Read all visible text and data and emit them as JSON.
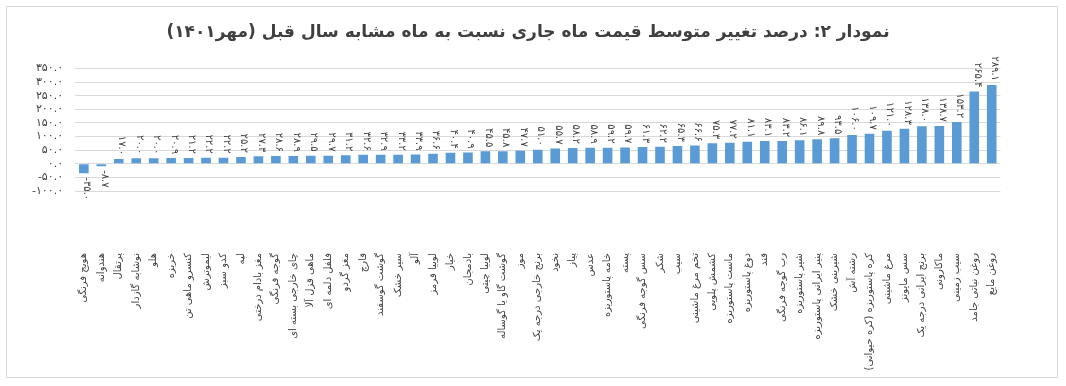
{
  "chart_data": {
    "type": "bar",
    "title": "نمودار ۲: درصد تغییر متوسط قیمت ماه جاری نسبت به ماه مشابه سال قبل (مهر۱۴۰۱)",
    "categories": [
      "هویج فرنگی",
      "هندوانه",
      "پرتقال",
      "نوشابه گازدار",
      "هلو",
      "خربزه",
      "کنسرو ماهی تن",
      "لیموترش",
      "کدو سبز",
      "لپه",
      "مغز بادام درختی",
      "گوجه فرنگی",
      "چای خارجی بسته ای",
      "ماهی قزل آلا",
      "فلفل دلمه ای",
      "مغز گردو",
      "قارچ",
      "گوشت گوسفند",
      "سیر خشک",
      "آلو",
      "لوبیا قرمز",
      "خیار",
      "بادمجان",
      "لوبیا چیتی",
      "گوشت گاو یا گوساله",
      "موز",
      "برنج خارجی درجه یک",
      "نخود",
      "پیاز",
      "عدس",
      "خامه پاستوریزه",
      "پسته",
      "سس گوجه فرنگی",
      "شکر",
      "سیب",
      "تخم مرغ ماشینی",
      "کشمش پلویی",
      "ماست پاستوریزه",
      "دوغ پاستوریزه",
      "قند",
      "رب گوجه فرنگی",
      "شیر پاستوریزه",
      "پنیر ایرانی پاستوریزه",
      "شیرینی خشک",
      "رشته آش",
      "کره پاستوریزه (کره حیوانی)",
      "مرغ ماشینی",
      "سس مایونز",
      "برنج ایرانی درجه یک",
      "ماکارونی",
      "سیب زمینی",
      "روغن نباتی جامد",
      "روغن مایع"
    ],
    "values": [
      -35.0,
      -8.7,
      17.0,
      20.0,
      20.0,
      20.9,
      21.2,
      22.2,
      22.2,
      25.2,
      27.3,
      28.6,
      28.9,
      29.5,
      29.7,
      31.2,
      32.6,
      32.9,
      33.2,
      33.9,
      36.6,
      40.4,
      40.9,
      45.5,
      45.8,
      47.7,
      51.0,
      55.7,
      58.2,
      58.9,
      59.2,
      59.7,
      61.3,
      62.2,
      65.3,
      66.6,
      75.3,
      77.2,
      81.1,
      83.1,
      83.2,
      86.1,
      89.8,
      93.5,
      106.0,
      109.7,
      121.0,
      128.3,
      138.0,
      138.7,
      153.2,
      265.4,
      289.1
    ],
    "value_labels": [
      "-۳۵.۰",
      "-۸.۷",
      "۱۷.۰",
      "۲۰.۰",
      "۲۰.۰",
      "۲۰.۹",
      "۲۱.۲",
      "۲۲.۲",
      "۲۲.۲",
      "۲۵.۲",
      "۲۷.۳",
      "۲۸.۶",
      "۲۸.۹",
      "۲۹.۵",
      "۲۹.۷",
      "۳۱.۲",
      "۳۲.۶",
      "۳۲.۹",
      "۳۳.۲",
      "۳۳.۹",
      "۳۶.۶",
      "۴۰.۴",
      "۴۰.۹",
      "۴۵.۵",
      "۴۵.۸",
      "۴۷.۷",
      "۵۱.۰",
      "۵۵.۷",
      "۵۸.۲",
      "۵۸.۹",
      "۵۹.۲",
      "۵۹.۷",
      "۶۱.۳",
      "۶۲.۲",
      "۶۵.۳",
      "۶۶.۶",
      "۷۵.۳",
      "۷۷.۲",
      "۸۱.۱",
      "۸۳.۱",
      "۸۳.۲",
      "۸۶.۱",
      "۸۹.۸",
      "۹۳.۵",
      "۱۰۶.۰",
      "۱۰۹.۷",
      "۱۲۱.۰",
      "۱۲۸.۳",
      "۱۳۸.۰",
      "۱۳۸.۷",
      "۱۵۳.۲",
      "۲۶۵.۴",
      "۲۸۹.۱"
    ],
    "color": "#5b9bd5",
    "ylim": [
      -100,
      350
    ],
    "yticks": [
      {
        "value": -100,
        "label": "-۱۰۰.۰"
      },
      {
        "value": -50,
        "label": "-۵۰.۰"
      },
      {
        "value": 0,
        "label": "۰.۰"
      },
      {
        "value": 50,
        "label": "۵۰.۰"
      },
      {
        "value": 100,
        "label": "۱۰۰.۰"
      },
      {
        "value": 150,
        "label": "۱۵۰.۰"
      },
      {
        "value": 200,
        "label": "۲۰۰.۰"
      },
      {
        "value": 250,
        "label": "۲۵۰.۰"
      },
      {
        "value": 300,
        "label": "۳۰۰.۰"
      },
      {
        "value": 350,
        "label": "۳۵۰.۰"
      }
    ],
    "grid": "y"
  }
}
